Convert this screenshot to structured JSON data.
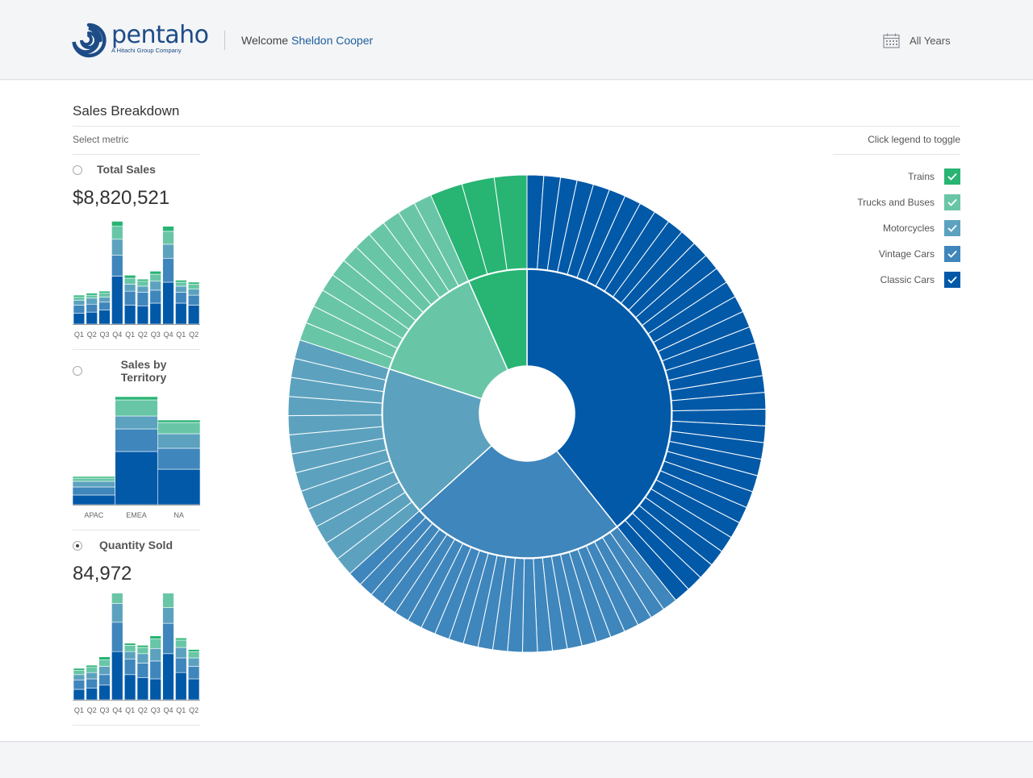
{
  "header": {
    "brand": "pentaho",
    "brand_sub": "A Hitachi Group Company",
    "welcome": "Welcome",
    "user": "Sheldon Cooper",
    "year_filter": "All Years"
  },
  "panel": {
    "title": "Sales Breakdown",
    "select_metric": "Select metric",
    "legend_hint": "Click legend to toggle"
  },
  "colors": {
    "Trains": "#28b473",
    "Trucks and Buses": "#68c6a7",
    "Motorcycles": "#5ca2bf",
    "Vintage Cars": "#3f86bc",
    "Classic Cars": "#0159a8"
  },
  "legend": [
    {
      "name": "Trains",
      "checked": true
    },
    {
      "name": "Trucks and Buses",
      "checked": true
    },
    {
      "name": "Motorcycles",
      "checked": true
    },
    {
      "name": "Vintage Cars",
      "checked": true
    },
    {
      "name": "Classic Cars",
      "checked": true
    }
  ],
  "metrics": [
    {
      "id": "total-sales",
      "label": "Total Sales",
      "value": "$8,820,521",
      "selected": false
    },
    {
      "id": "sales-by-territory",
      "label": "Sales by Territory",
      "value": "",
      "selected": false
    },
    {
      "id": "quantity-sold",
      "label": "Quantity Sold",
      "value": "84,972",
      "selected": true
    }
  ],
  "chart_data": [
    {
      "type": "bar",
      "title": "Total Sales",
      "stacked": true,
      "categories": [
        "Q1",
        "Q2",
        "Q3",
        "Q4",
        "Q1",
        "Q2",
        "Q3",
        "Q4",
        "Q1",
        "Q2"
      ],
      "series": [
        {
          "name": "Classic Cars",
          "values": [
            11,
            12,
            14,
            48,
            19,
            18,
            21,
            42,
            21,
            19
          ]
        },
        {
          "name": "Vintage Cars",
          "values": [
            8,
            8,
            8,
            21,
            14,
            14,
            13,
            24,
            11,
            10
          ]
        },
        {
          "name": "Motorcycles",
          "values": [
            5,
            6,
            5,
            16,
            7,
            6,
            9,
            14,
            6,
            6
          ]
        },
        {
          "name": "Trucks and Buses",
          "values": [
            3,
            3,
            4,
            13,
            6,
            5,
            7,
            13,
            4,
            5
          ]
        },
        {
          "name": "Trains",
          "values": [
            2,
            2,
            2,
            5,
            3,
            2,
            3,
            5,
            2,
            2
          ]
        }
      ]
    },
    {
      "type": "bar",
      "title": "Sales by Territory",
      "stacked": true,
      "categories": [
        "APAC",
        "EMEA",
        "NA"
      ],
      "series": [
        {
          "name": "Classic Cars",
          "values": [
            12,
            66,
            44
          ]
        },
        {
          "name": "Vintage Cars",
          "values": [
            10,
            28,
            26
          ]
        },
        {
          "name": "Motorcycles",
          "values": [
            7,
            16,
            18
          ]
        },
        {
          "name": "Trucks and Buses",
          "values": [
            4,
            20,
            14
          ]
        },
        {
          "name": "Trains",
          "values": [
            2,
            4,
            3
          ]
        }
      ]
    },
    {
      "type": "bar",
      "title": "Quantity Sold",
      "stacked": true,
      "categories": [
        "Q1",
        "Q2",
        "Q3",
        "Q4",
        "Q1",
        "Q2",
        "Q3",
        "Q4",
        "Q1",
        "Q2"
      ],
      "series": [
        {
          "name": "Classic Cars",
          "values": [
            10,
            11,
            14,
            46,
            24,
            21,
            20,
            44,
            26,
            20
          ]
        },
        {
          "name": "Vintage Cars",
          "values": [
            9,
            9,
            10,
            28,
            15,
            14,
            17,
            29,
            14,
            12
          ]
        },
        {
          "name": "Motorcycles",
          "values": [
            5,
            6,
            8,
            18,
            7,
            9,
            12,
            15,
            10,
            8
          ]
        },
        {
          "name": "Trucks and Buses",
          "values": [
            4,
            5,
            6,
            16,
            6,
            6,
            9,
            16,
            7,
            6
          ]
        },
        {
          "name": "Trains",
          "values": [
            2,
            2,
            3,
            4,
            2,
            2,
            3,
            5,
            2,
            2
          ]
        }
      ]
    },
    {
      "type": "pie",
      "subtype": "sunburst",
      "title": "Sales Breakdown",
      "total": 100,
      "slices": [
        {
          "name": "Classic Cars",
          "value": 39.3,
          "children": 35
        },
        {
          "name": "Vintage Cars",
          "value": 24.0,
          "children": 24
        },
        {
          "name": "Motorcycles",
          "value": 16.7,
          "children": 13
        },
        {
          "name": "Trucks and Buses",
          "value": 13.4,
          "children": 11
        },
        {
          "name": "Trains",
          "value": 6.6,
          "children": 3
        }
      ]
    }
  ]
}
